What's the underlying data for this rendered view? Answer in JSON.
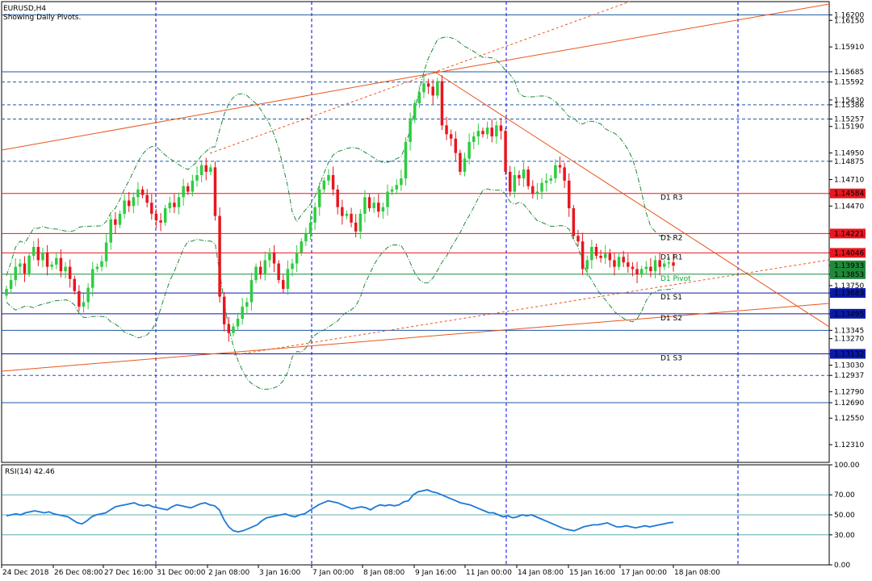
{
  "header": {
    "symbol": "EURUSD,H4",
    "subtitle": "Showing Daily Pivots."
  },
  "colors": {
    "bull": "#2ecc40",
    "bear": "#e8161e",
    "grid_v": "#0000ff",
    "trend": "#e8561e",
    "pivot_red": "#e8161e",
    "pivot_green": "#1f8a3a",
    "pivot_blue": "#0a1aa8",
    "rsi": "#1e78d6"
  },
  "chart_data": [
    {
      "type": "candlestick",
      "symbol": "EURUSD",
      "timeframe": "H4",
      "ylim": [
        1.1215,
        1.1632
      ],
      "price_ticks": [
        "1.16200",
        "1.16150",
        "1.15910",
        "1.15685",
        "1.15592",
        "1.15430",
        "1.15386",
        "1.15257",
        "1.15190",
        "1.14950",
        "1.14875",
        "1.14710",
        "1.14584",
        "1.14470",
        "1.14221",
        "1.14046",
        "1.13933",
        "1.13853",
        "1.13750",
        "1.13683",
        "1.13495",
        "1.13345",
        "1.13270",
        "1.13132",
        "1.13030",
        "1.12937",
        "1.12790",
        "1.12690",
        "1.12550",
        "1.12310"
      ],
      "x_ticks": [
        "24 Dec 2018",
        "26 Dec 08:00",
        "27 Dec 16:00",
        "31 Dec 00:00",
        "2 Jan 08:00",
        "3 Jan 16:00",
        "7 Jan 00:00",
        "8 Jan 08:00",
        "9 Jan 16:00",
        "11 Jan 00:00",
        "14 Jan 08:00",
        "15 Jan 16:00",
        "17 Jan 00:00",
        "18 Jan 08:00"
      ],
      "pivot_levels": [
        {
          "name": "D1 R3",
          "value": 1.14584,
          "value_label": "1.14584",
          "color": "red"
        },
        {
          "name": "D1 R2",
          "value": 1.14221,
          "value_label": "1.14221",
          "color": "red"
        },
        {
          "name": "D1 R1",
          "value": 1.14046,
          "value_label": "1.14046",
          "color": "red"
        },
        {
          "name": "D1 Pivot",
          "value": 1.13853,
          "value_label": "1.13853",
          "color": "green"
        },
        {
          "name": "D1 S1",
          "value": 1.13683,
          "value_label": "1.13683",
          "color": "blue"
        },
        {
          "name": "D1 S2",
          "value": 1.13495,
          "value_label": "1.13495",
          "color": "blue"
        },
        {
          "name": "D1 S3",
          "value": 1.13132,
          "value_label": "1.13132",
          "color": "blue"
        }
      ],
      "horizontal_levels": [
        {
          "value": 1.162,
          "style": "solid"
        },
        {
          "value": 1.15685,
          "style": "solid"
        },
        {
          "value": 1.15592,
          "style": "dashed"
        },
        {
          "value": 1.15386,
          "style": "dashed"
        },
        {
          "value": 1.15257,
          "style": "dashed"
        },
        {
          "value": 1.14875,
          "style": "dashed"
        },
        {
          "value": 1.13345,
          "style": "solid"
        },
        {
          "value": 1.12937,
          "style": "dashed"
        },
        {
          "value": 1.1269,
          "style": "solid"
        }
      ],
      "current_price": {
        "value": 1.13933,
        "label": "1.13933"
      },
      "closes": [
        1.1372,
        1.138,
        1.1392,
        1.1395,
        1.1386,
        1.1402,
        1.141,
        1.1398,
        1.1405,
        1.1392,
        1.1394,
        1.14,
        1.1388,
        1.1392,
        1.1381,
        1.137,
        1.1356,
        1.136,
        1.1373,
        1.139,
        1.1392,
        1.1397,
        1.1414,
        1.1435,
        1.143,
        1.144,
        1.1452,
        1.1447,
        1.1455,
        1.1462,
        1.1457,
        1.145,
        1.144,
        1.1434,
        1.1432,
        1.1445,
        1.145,
        1.1446,
        1.1455,
        1.1465,
        1.146,
        1.147,
        1.1475,
        1.1484,
        1.1478,
        1.1482,
        1.1438,
        1.1365,
        1.134,
        1.1332,
        1.1338,
        1.1345,
        1.1356,
        1.136,
        1.138,
        1.1392,
        1.1385,
        1.1398,
        1.1405,
        1.1395,
        1.138,
        1.1372,
        1.139,
        1.1395,
        1.1405,
        1.1415,
        1.1422,
        1.1432,
        1.1446,
        1.1462,
        1.147,
        1.1475,
        1.1462,
        1.1446,
        1.1438,
        1.144,
        1.1432,
        1.1424,
        1.144,
        1.1455,
        1.1445,
        1.145,
        1.1442,
        1.1446,
        1.146,
        1.1462,
        1.1466,
        1.1472,
        1.1505,
        1.1525,
        1.154,
        1.155,
        1.1558,
        1.1555,
        1.1547,
        1.156,
        1.152,
        1.1512,
        1.1508,
        1.1495,
        1.1478,
        1.149,
        1.1505,
        1.151,
        1.1515,
        1.1512,
        1.1518,
        1.151,
        1.152,
        1.1515,
        1.1478,
        1.146,
        1.1475,
        1.1472,
        1.148,
        1.1465,
        1.1458,
        1.146,
        1.1468,
        1.147,
        1.1472,
        1.1484,
        1.1482,
        1.147,
        1.1445,
        1.142,
        1.1415,
        1.139,
        1.1398,
        1.141,
        1.1402,
        1.14,
        1.1404,
        1.1398,
        1.1392,
        1.1401,
        1.1396,
        1.1392,
        1.139,
        1.1385,
        1.139,
        1.1392,
        1.1388,
        1.1398,
        1.1392,
        1.1395,
        1.1396,
        1.1393
      ]
    },
    {
      "type": "line",
      "name": "RSI(14)",
      "header_label": "RSI(14) 42.46",
      "ylim": [
        0,
        100
      ],
      "y_ticks": [
        "100.00",
        "70.00",
        "50.00",
        "30.00",
        "0.00"
      ],
      "levels": [
        70,
        50,
        30
      ],
      "values": [
        49,
        50,
        51,
        50,
        52,
        53,
        54,
        53,
        52,
        53,
        51,
        50,
        49,
        48,
        45,
        42,
        41,
        44,
        48,
        50,
        51,
        52,
        55,
        58,
        59,
        60,
        61,
        62,
        60,
        59,
        60,
        58,
        57,
        56,
        55,
        58,
        60,
        59,
        58,
        57,
        59,
        61,
        62,
        60,
        59,
        55,
        45,
        38,
        34,
        33,
        34,
        36,
        38,
        40,
        44,
        47,
        48,
        49,
        50,
        51,
        49,
        48,
        50,
        51,
        54,
        57,
        60,
        62,
        64,
        63,
        62,
        60,
        58,
        56,
        57,
        58,
        57,
        55,
        58,
        60,
        59,
        60,
        59,
        60,
        63,
        64,
        70,
        73,
        74,
        75,
        73,
        72,
        70,
        68,
        66,
        64,
        62,
        61,
        60,
        58,
        56,
        54,
        52,
        52,
        50,
        48,
        49,
        47,
        48,
        50,
        49,
        50,
        48,
        46,
        44,
        42,
        40,
        38,
        36,
        35,
        34,
        36,
        38,
        39,
        40,
        40,
        41,
        42,
        40,
        38,
        38,
        39,
        38,
        37,
        38,
        39,
        38,
        39,
        40,
        41,
        42,
        42.46
      ]
    }
  ]
}
